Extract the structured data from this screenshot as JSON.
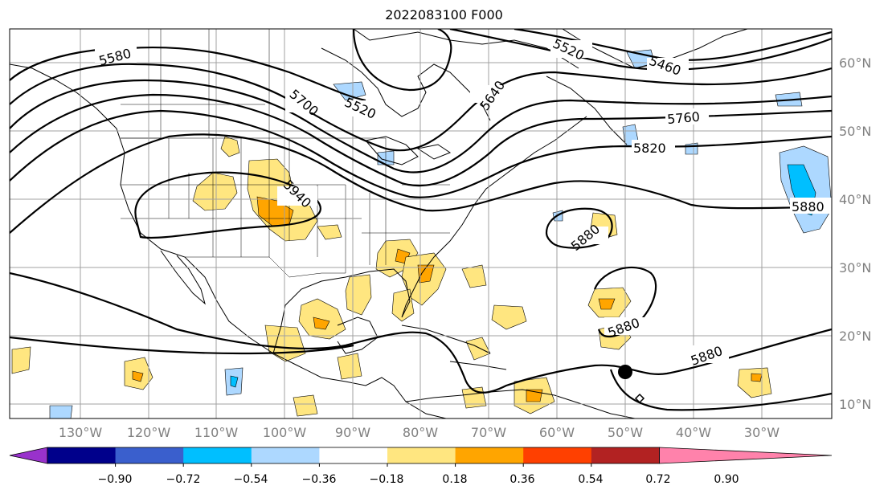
{
  "title": "2022083100 F000",
  "latitude_labels": [
    "60°N",
    "50°N",
    "40°N",
    "30°N",
    "20°N",
    "10°N"
  ],
  "longitude_labels": [
    "130°W",
    "120°W",
    "110°W",
    "100°W",
    "90°W",
    "80°W",
    "70°W",
    "60°W",
    "50°W",
    "40°W",
    "30°W"
  ],
  "contour_labels": [
    "5580",
    "5700",
    "5520",
    "5640",
    "5520",
    "5460",
    "5760",
    "5820",
    "5940",
    "5880",
    "5880",
    "5880",
    "5880",
    "5880"
  ],
  "colorbar": {
    "tick_labels": [
      "−0.90",
      "−0.72",
      "−0.54",
      "−0.36",
      "−0.18",
      "0.18",
      "0.36",
      "0.54",
      "0.72",
      "0.90"
    ],
    "colors": [
      "#9932cc",
      "#00008b",
      "#3a5fcd",
      "#00bfff",
      "#add8ff",
      "#ffffff",
      "#ffe680",
      "#ffa500",
      "#ff4000",
      "#b22222",
      "#ff82ab"
    ]
  },
  "colors": {
    "positive_fill": "#ffe680",
    "positive_core": "#ffa500",
    "negative_fill": "#add8ff",
    "negative_core": "#00bfff",
    "contour": "#000000",
    "grid": "#a0a0a0",
    "axis_labels": "#808080"
  }
}
